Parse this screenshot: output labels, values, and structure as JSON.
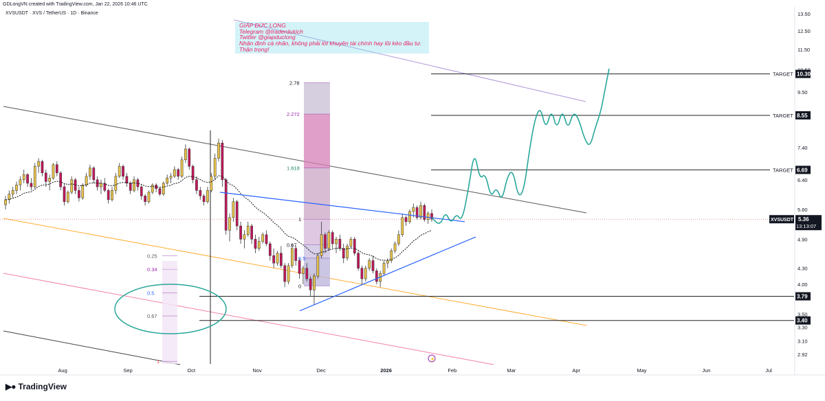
{
  "header": {
    "credit": "GDLongVN created with TradingView.com, Jan 22, 2026 10:46 UTC",
    "symbol_line": "XVSUSDT · XVS / TetherUS · 1D · Binance"
  },
  "note": {
    "lines": [
      "GIÁP ĐỨC LONG",
      "Telegram @traderdukich",
      "Twitter @giapduclong",
      "Nhận định cá nhân, không phải lời khuyên tài chính hay lôi kéo đầu tư.",
      "Thận trọng!"
    ]
  },
  "brand": {
    "name": "TradingView"
  },
  "colors": {
    "up": "#089981",
    "down": "#f23645",
    "candle_up": "#e8c24a",
    "candle_down": "#c2185b",
    "projection": "#26a69a",
    "trend_blue": "#2962ff",
    "fib_purple": "#9c27b0",
    "orange_line": "#ff9800",
    "pink_line": "#f06292",
    "violet_line": "#9575cd"
  },
  "chart_data": {
    "type": "candlestick",
    "title": "",
    "symbol": "XVSUSDT",
    "timeframe": "1D",
    "x_ticks": [
      "Aug",
      "Sep",
      "Oct",
      "Nov",
      "Dec",
      "2026",
      "Feb",
      "Mar",
      "Apr",
      "May",
      "Jun",
      "Jul"
    ],
    "y_ticks": [
      13.5,
      12.5,
      11.5,
      10.5,
      9.5,
      8.5,
      7.4,
      6.4,
      5.6,
      4.9,
      4.3,
      4.0,
      3.5,
      3.3,
      3.1,
      2.92
    ],
    "y_scale": "log",
    "ylim": [
      2.8,
      13.8
    ],
    "last_price": {
      "label": "XVSUSDT",
      "value": "5.36",
      "countdown": "13:13:07"
    },
    "price_labels": [
      "10.30",
      "8.55",
      "6.69",
      "3.79",
      "3.40"
    ],
    "targets": [
      {
        "label": "TARGET",
        "value": 10.3
      },
      {
        "label": "TARGET",
        "value": 8.55
      },
      {
        "label": "TARGET",
        "value": 6.69
      }
    ],
    "support_levels": [
      3.79,
      3.4
    ],
    "fib_extension": {
      "levels": [
        {
          "label": "2.78",
          "value": 9.9
        },
        {
          "label": "2.272",
          "value": 8.6
        },
        {
          "label": "1.618",
          "value": 6.75
        },
        {
          "label": "1",
          "value": 5.36
        },
        {
          "label": "0.67",
          "value": 4.78
        },
        {
          "label": "0.5",
          "value": 4.5
        },
        {
          "label": "0",
          "value": 3.97
        }
      ]
    },
    "fib_small": {
      "levels": [
        {
          "label": "0.25",
          "value": 4.55
        },
        {
          "label": "0.34",
          "value": 4.28
        },
        {
          "label": "0.5",
          "value": 3.85
        },
        {
          "label": "0.67",
          "value": 3.47
        },
        {
          "label": "1",
          "value": 2.83
        }
      ]
    },
    "candles": [
      [
        5.72,
        5.95,
        5.6,
        5.85
      ],
      [
        5.85,
        6.1,
        5.75,
        6.0
      ],
      [
        6.0,
        6.2,
        5.9,
        6.1
      ],
      [
        6.1,
        6.35,
        6.0,
        6.25
      ],
      [
        6.25,
        6.5,
        6.1,
        6.4
      ],
      [
        6.4,
        6.7,
        6.3,
        6.55
      ],
      [
        6.55,
        6.6,
        6.2,
        6.3
      ],
      [
        6.3,
        6.45,
        6.1,
        6.2
      ],
      [
        6.2,
        6.9,
        6.15,
        6.8
      ],
      [
        6.8,
        7.05,
        6.6,
        6.95
      ],
      [
        6.95,
        7.0,
        6.5,
        6.6
      ],
      [
        6.6,
        6.7,
        6.2,
        6.35
      ],
      [
        6.35,
        6.55,
        6.1,
        6.45
      ],
      [
        6.45,
        6.9,
        6.4,
        6.85
      ],
      [
        6.85,
        6.95,
        6.5,
        6.6
      ],
      [
        6.6,
        6.65,
        6.1,
        6.2
      ],
      [
        6.2,
        6.3,
        5.7,
        5.8
      ],
      [
        5.8,
        6.1,
        5.75,
        6.05
      ],
      [
        6.05,
        6.5,
        6.0,
        6.4
      ],
      [
        6.4,
        6.45,
        6.0,
        6.1
      ],
      [
        6.1,
        6.2,
        5.8,
        5.9
      ],
      [
        5.9,
        6.3,
        5.85,
        6.25
      ],
      [
        6.25,
        6.6,
        6.2,
        6.5
      ],
      [
        6.5,
        6.85,
        6.4,
        6.75
      ],
      [
        6.75,
        6.8,
        6.3,
        6.4
      ],
      [
        6.4,
        6.5,
        6.1,
        6.2
      ],
      [
        6.2,
        6.4,
        6.0,
        6.3
      ],
      [
        6.3,
        6.45,
        6.05,
        6.1
      ],
      [
        6.1,
        6.15,
        5.75,
        5.85
      ],
      [
        5.85,
        6.2,
        5.8,
        6.1
      ],
      [
        6.1,
        6.6,
        6.0,
        6.5
      ],
      [
        6.5,
        6.9,
        6.45,
        6.8
      ],
      [
        6.8,
        6.85,
        6.4,
        6.5
      ],
      [
        6.5,
        6.6,
        6.2,
        6.3
      ],
      [
        6.3,
        6.35,
        6.0,
        6.1
      ],
      [
        6.1,
        6.5,
        6.05,
        6.4
      ],
      [
        6.4,
        6.45,
        6.1,
        6.2
      ],
      [
        6.2,
        6.25,
        5.85,
        5.95
      ],
      [
        5.95,
        6.0,
        5.7,
        5.8
      ],
      [
        5.8,
        6.1,
        5.75,
        6.05
      ],
      [
        6.05,
        6.3,
        6.0,
        6.25
      ],
      [
        6.25,
        6.3,
        6.05,
        6.15
      ],
      [
        6.15,
        6.2,
        5.95,
        6.0
      ],
      [
        6.0,
        6.35,
        5.95,
        6.3
      ],
      [
        6.3,
        6.55,
        6.25,
        6.45
      ],
      [
        6.45,
        6.6,
        6.3,
        6.5
      ],
      [
        6.5,
        6.8,
        6.45,
        6.7
      ],
      [
        6.7,
        6.75,
        6.4,
        6.5
      ],
      [
        6.5,
        7.1,
        6.45,
        7.0
      ],
      [
        7.0,
        7.5,
        6.9,
        7.35
      ],
      [
        7.35,
        7.4,
        6.7,
        6.8
      ],
      [
        6.8,
        6.85,
        6.3,
        6.4
      ],
      [
        6.4,
        6.5,
        6.0,
        6.1
      ],
      [
        6.1,
        6.2,
        5.85,
        5.95
      ],
      [
        5.95,
        6.0,
        5.7,
        5.8
      ],
      [
        5.8,
        6.2,
        5.75,
        6.1
      ],
      [
        6.1,
        6.6,
        6.05,
        6.5
      ],
      [
        6.5,
        7.2,
        6.4,
        7.05
      ],
      [
        7.05,
        7.7,
        6.95,
        7.55
      ],
      [
        7.55,
        7.65,
        6.2,
        6.4
      ],
      [
        6.4,
        6.45,
        5.0,
        5.1
      ],
      [
        5.1,
        5.5,
        4.85,
        5.4
      ],
      [
        5.4,
        5.9,
        5.3,
        5.8
      ],
      [
        5.8,
        5.85,
        5.1,
        5.2
      ],
      [
        5.2,
        5.3,
        4.8,
        4.9
      ],
      [
        4.9,
        5.1,
        4.7,
        5.0
      ],
      [
        5.0,
        5.3,
        4.95,
        5.2
      ],
      [
        5.2,
        5.25,
        4.8,
        4.9
      ],
      [
        4.9,
        5.0,
        4.6,
        4.7
      ],
      [
        4.7,
        4.95,
        4.65,
        4.85
      ],
      [
        4.85,
        5.05,
        4.8,
        5.0
      ],
      [
        5.0,
        5.1,
        4.75,
        4.8
      ],
      [
        4.8,
        4.85,
        4.45,
        4.55
      ],
      [
        4.55,
        4.7,
        4.3,
        4.4
      ],
      [
        4.4,
        4.65,
        4.35,
        4.6
      ],
      [
        4.6,
        4.75,
        4.3,
        4.35
      ],
      [
        4.35,
        4.4,
        3.95,
        4.05
      ],
      [
        4.05,
        4.4,
        4.0,
        4.35
      ],
      [
        4.35,
        4.8,
        4.3,
        4.7
      ],
      [
        4.7,
        4.75,
        4.35,
        4.45
      ],
      [
        4.45,
        4.5,
        4.1,
        4.2
      ],
      [
        4.2,
        4.35,
        4.0,
        4.3
      ],
      [
        4.3,
        4.4,
        4.05,
        4.1
      ],
      [
        4.1,
        4.15,
        3.8,
        3.9
      ],
      [
        3.9,
        4.2,
        3.65,
        4.15
      ],
      [
        4.15,
        4.6,
        4.1,
        4.55
      ],
      [
        4.55,
        5.3,
        4.5,
        5.0
      ],
      [
        5.0,
        5.05,
        4.6,
        4.7
      ],
      [
        4.7,
        5.1,
        4.65,
        5.05
      ],
      [
        5.05,
        5.1,
        4.7,
        4.8
      ],
      [
        4.8,
        4.95,
        4.6,
        4.9
      ],
      [
        4.9,
        5.0,
        4.65,
        4.7
      ],
      [
        4.7,
        4.8,
        4.4,
        4.5
      ],
      [
        4.5,
        4.8,
        4.45,
        4.75
      ],
      [
        4.75,
        4.95,
        4.7,
        4.9
      ],
      [
        4.9,
        4.95,
        4.55,
        4.6
      ],
      [
        4.6,
        4.65,
        4.25,
        4.3
      ],
      [
        4.3,
        4.35,
        4.0,
        4.1
      ],
      [
        4.1,
        4.35,
        4.05,
        4.3
      ],
      [
        4.3,
        4.5,
        4.25,
        4.45
      ],
      [
        4.45,
        4.55,
        4.2,
        4.25
      ],
      [
        4.25,
        4.3,
        4.0,
        4.05
      ],
      [
        4.05,
        4.25,
        3.95,
        4.2
      ],
      [
        4.2,
        4.45,
        4.15,
        4.4
      ],
      [
        4.4,
        4.5,
        4.3,
        4.45
      ],
      [
        4.45,
        4.7,
        4.4,
        4.65
      ],
      [
        4.65,
        4.85,
        4.6,
        4.8
      ],
      [
        4.8,
        5.1,
        4.75,
        5.0
      ],
      [
        5.0,
        5.5,
        4.95,
        5.4
      ],
      [
        5.4,
        5.45,
        5.2,
        5.3
      ],
      [
        5.3,
        5.6,
        5.25,
        5.55
      ],
      [
        5.55,
        5.75,
        5.4,
        5.65
      ],
      [
        5.65,
        5.7,
        5.35,
        5.4
      ],
      [
        5.4,
        5.8,
        5.35,
        5.7
      ],
      [
        5.7,
        5.75,
        5.3,
        5.35
      ],
      [
        5.35,
        5.55,
        5.25,
        5.5
      ],
      [
        5.5,
        5.6,
        5.3,
        5.36
      ]
    ],
    "moving_average": "ema",
    "projection_path": "green wavy path from current price to ~10.30",
    "lines": [
      "descending channel (black)",
      "rising trendline (blue)",
      "descending trendline (blue)",
      "orange diagonal",
      "pink diagonal",
      "violet diagonal"
    ]
  }
}
